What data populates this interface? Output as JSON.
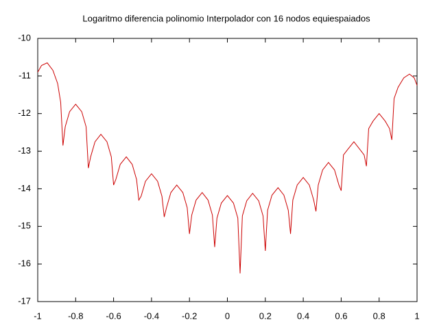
{
  "chart_data": {
    "type": "line",
    "title": "Logaritmo diferencia polinomio Interpolador con 16 nodos equiespaiados",
    "color": "#cc0000",
    "x": [
      -1,
      -0.98,
      -0.95,
      -0.92,
      -0.895,
      -0.879,
      -0.867,
      -0.855,
      -0.832,
      -0.8,
      -0.768,
      -0.745,
      -0.733,
      -0.721,
      -0.698,
      -0.667,
      -0.635,
      -0.612,
      -0.6,
      -0.588,
      -0.565,
      -0.533,
      -0.502,
      -0.479,
      -0.467,
      -0.455,
      -0.432,
      -0.4,
      -0.368,
      -0.345,
      -0.333,
      -0.321,
      -0.298,
      -0.267,
      -0.235,
      -0.212,
      -0.2,
      -0.188,
      -0.165,
      -0.133,
      -0.102,
      -0.079,
      -0.067,
      -0.055,
      -0.032,
      0,
      0.032,
      0.055,
      0.067,
      0.079,
      0.102,
      0.133,
      0.165,
      0.188,
      0.2,
      0.212,
      0.235,
      0.267,
      0.298,
      0.321,
      0.333,
      0.345,
      0.368,
      0.4,
      0.432,
      0.455,
      0.467,
      0.479,
      0.502,
      0.533,
      0.565,
      0.588,
      0.6,
      0.612,
      0.635,
      0.667,
      0.698,
      0.721,
      0.733,
      0.745,
      0.768,
      0.8,
      0.832,
      0.855,
      0.867,
      0.879,
      0.9,
      0.93,
      0.96,
      0.985,
      1
    ],
    "values": [
      -10.9,
      -10.72,
      -10.65,
      -10.85,
      -11.2,
      -11.7,
      -12.85,
      -12.35,
      -11.95,
      -11.75,
      -11.95,
      -12.35,
      -13.45,
      -13.15,
      -12.75,
      -12.55,
      -12.75,
      -13.15,
      -13.9,
      -13.75,
      -13.35,
      -13.15,
      -13.35,
      -13.75,
      -14.3,
      -14.2,
      -13.8,
      -13.6,
      -13.8,
      -14.2,
      -14.75,
      -14.5,
      -14.1,
      -13.9,
      -14.1,
      -14.5,
      -15.2,
      -14.7,
      -14.3,
      -14.1,
      -14.3,
      -14.7,
      -15.55,
      -14.78,
      -14.38,
      -14.18,
      -14.38,
      -14.78,
      -16.25,
      -14.72,
      -14.32,
      -14.12,
      -14.32,
      -14.72,
      -15.65,
      -14.57,
      -14.17,
      -13.97,
      -14.17,
      -14.57,
      -15.2,
      -14.3,
      -13.9,
      -13.7,
      -13.9,
      -14.3,
      -14.6,
      -13.9,
      -13.5,
      -13.3,
      -13.5,
      -13.9,
      -14.05,
      -13.1,
      -12.95,
      -12.75,
      -12.95,
      -13.1,
      -13.4,
      -12.4,
      -12.2,
      -12,
      -12.2,
      -12.4,
      -12.7,
      -11.6,
      -11.3,
      -11.05,
      -10.95,
      -11.05,
      -11.25
    ],
    "xlim": [
      -1,
      1
    ],
    "ylim": [
      -17,
      -10
    ],
    "xticks": [
      -1,
      -0.8,
      -0.6,
      -0.4,
      -0.2,
      0,
      0.2,
      0.4,
      0.6,
      0.8,
      1
    ],
    "yticks": [
      -17,
      -16,
      -15,
      -14,
      -13,
      -12,
      -11,
      -10
    ]
  }
}
